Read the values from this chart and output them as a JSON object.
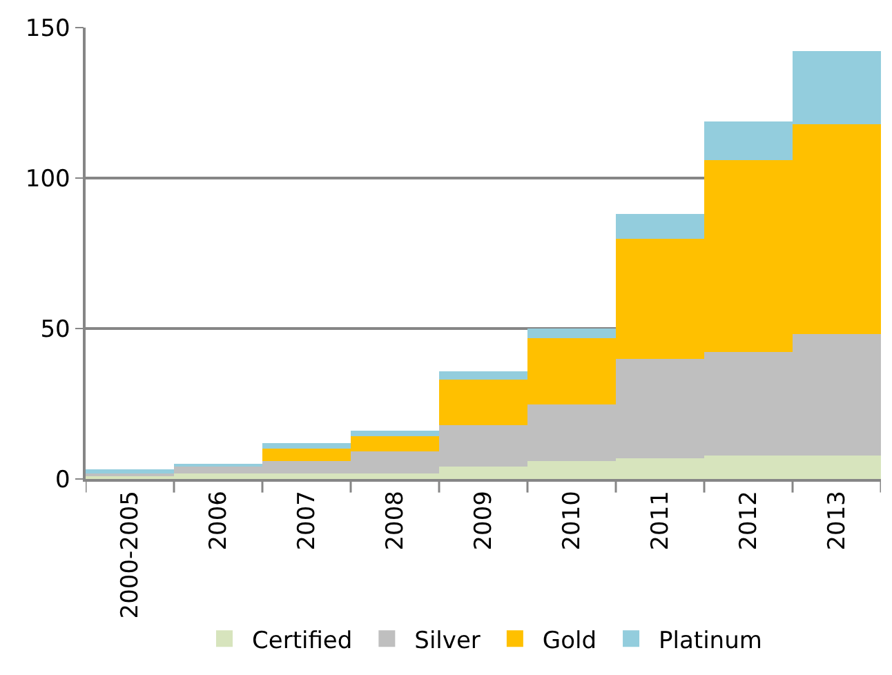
{
  "chart_data": {
    "type": "bar",
    "stacked": true,
    "categories": [
      "2000-2005",
      "2006",
      "2007",
      "2008",
      "2009",
      "2010",
      "2011",
      "2012",
      "2013"
    ],
    "series": [
      {
        "name": "Certified",
        "color": "#d7e4bd",
        "values": [
          1,
          2,
          2,
          2,
          4,
          6,
          7,
          8,
          8
        ]
      },
      {
        "name": "Silver",
        "color": "#bfbfbf",
        "values": [
          1,
          2,
          4,
          7,
          14,
          19,
          33,
          34,
          40
        ]
      },
      {
        "name": "Gold",
        "color": "#ffc000",
        "values": [
          0,
          0,
          4,
          5,
          15,
          22,
          40,
          64,
          70
        ]
      },
      {
        "name": "Platinum",
        "color": "#93cddd",
        "values": [
          1,
          1,
          2,
          2,
          3,
          3,
          8,
          13,
          24
        ]
      }
    ],
    "ylim": [
      0,
      150
    ],
    "yticks": [
      0,
      50,
      100,
      150
    ],
    "grid": "y",
    "legend": "bottom"
  }
}
